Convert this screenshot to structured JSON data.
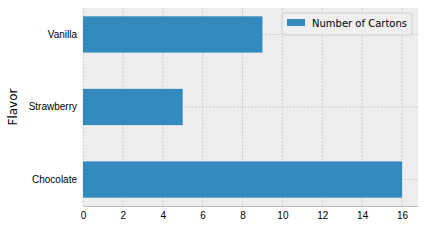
{
  "chart_data": {
    "type": "bar",
    "orientation": "horizontal",
    "y_label": "Flavor",
    "categories": [
      "Chocolate",
      "Strawberry",
      "Vanilla"
    ],
    "series": [
      {
        "name": "Number of Cartons",
        "color": "#348abd",
        "values": [
          16,
          5,
          9
        ]
      }
    ],
    "xlim": [
      0,
      16.8
    ],
    "xticks": [
      0,
      2,
      4,
      6,
      8,
      10,
      12,
      14,
      16
    ],
    "grid": true,
    "legend": "upper right"
  }
}
